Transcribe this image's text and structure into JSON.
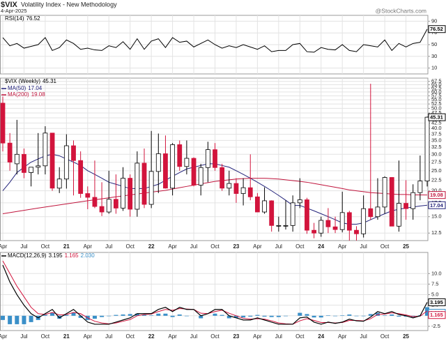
{
  "header": {
    "symbol": "$VIX",
    "name": "Volatility Index - New Methodology",
    "date": "4-Apr-2025",
    "credit": "@StockCharts.com"
  },
  "chart_data": [
    {
      "type": "line",
      "series": [
        {
          "name": "RSI(14)",
          "color": "#000000",
          "values": [
            62,
            48,
            52,
            44,
            47,
            50,
            62,
            40,
            45,
            58,
            52,
            42,
            44,
            41,
            40,
            48,
            45,
            55,
            42,
            60,
            42,
            56,
            60,
            45,
            62,
            54,
            56,
            46,
            52,
            58,
            50,
            44,
            48,
            45,
            50,
            46,
            42,
            48,
            38,
            40,
            40,
            50,
            52,
            38,
            37,
            45,
            42,
            41,
            50,
            40,
            38,
            50,
            48,
            46,
            58,
            40,
            52,
            46,
            52,
            54,
            76.52
          ]
        }
      ],
      "ylim": [
        0,
        100
      ],
      "yticks": [
        10,
        30,
        50,
        70,
        90
      ],
      "grid": true
    },
    {
      "type": "candlestick",
      "name": "$VIX (Weekly)",
      "categories": [
        "Apr",
        null,
        null,
        "Jul",
        null,
        null,
        "Oct",
        null,
        null,
        "21",
        null,
        null,
        "Apr",
        null,
        null,
        "Jul",
        null,
        null,
        "Oct",
        null,
        null,
        "22",
        null,
        null,
        "Apr",
        null,
        null,
        "Jul",
        null,
        null,
        "Oct",
        null,
        null,
        "23",
        null,
        null,
        "Apr",
        null,
        null,
        "Jul",
        null,
        null,
        "Oct",
        null,
        null,
        "24",
        null,
        null,
        "Apr",
        null,
        null,
        "Jul",
        null,
        null,
        "Oct",
        null,
        null,
        "25",
        null,
        null,
        null
      ],
      "open": [
        53,
        34,
        27,
        30,
        24.5,
        26,
        26.4,
        38,
        20.6,
        22.8,
        33,
        28,
        19.4,
        18.6,
        16.8,
        15.8,
        18.2,
        16.5,
        23,
        16.3,
        27.2,
        17.2,
        24.8,
        30.2,
        20.6,
        33.4,
        26.2,
        28.7,
        21.3,
        25.9,
        31.6,
        25.9,
        20.6,
        21.7,
        19.4,
        20.7,
        18.7,
        15.8,
        17.9,
        13.6,
        13.6,
        13.6,
        17.5,
        18.1,
        12.9,
        12.5,
        14.4,
        13.4,
        13,
        15.7,
        12.9,
        12.4,
        16.4,
        15,
        16.7,
        23.2,
        13.5,
        17.4,
        16.4,
        19.6,
        22.3
      ],
      "high": [
        57,
        38,
        44,
        32,
        26,
        38,
        41,
        38,
        26,
        37.5,
        35,
        31,
        21,
        28,
        22,
        25,
        24,
        26,
        24,
        31,
        32,
        38.9,
        37.8,
        37,
        34,
        35,
        35,
        29,
        27,
        34.5,
        34,
        27,
        25,
        23,
        23,
        30,
        19.5,
        20.8,
        18,
        15,
        18,
        19,
        23,
        18.5,
        14,
        15,
        16.5,
        15,
        19.8,
        16,
        13.5,
        19,
        65.7,
        23,
        23.5,
        23.3,
        28,
        22.5,
        21.5,
        29.6,
        45.6
      ],
      "low": [
        31,
        25,
        24,
        23,
        21,
        24,
        24,
        20,
        19.5,
        20.5,
        19,
        18.5,
        16.3,
        16.5,
        15.1,
        15.5,
        15.5,
        16,
        15,
        15,
        16.5,
        16.5,
        19.5,
        20.5,
        19,
        25,
        24,
        21,
        19,
        22,
        25,
        20,
        19,
        17.5,
        17,
        18,
        15.8,
        15.5,
        12.7,
        12.7,
        13,
        12.7,
        16.5,
        12.4,
        11.8,
        12,
        12.5,
        12.5,
        12.6,
        11.5,
        11.5,
        11.9,
        14.5,
        14.5,
        15.5,
        14,
        12.7,
        14.5,
        14.5,
        18,
        21
      ],
      "close": [
        34,
        27.5,
        30,
        24.5,
        26,
        26.4,
        38,
        20.6,
        22.8,
        33,
        28,
        19.4,
        18.6,
        16.8,
        15.8,
        18.2,
        16.5,
        23,
        16.3,
        27.2,
        17.2,
        24.8,
        30.2,
        20.6,
        33.4,
        26.2,
        28.7,
        21.3,
        25.9,
        31.6,
        25.9,
        20.6,
        21.7,
        19.4,
        20.7,
        18.7,
        15.8,
        17.9,
        13.6,
        13.6,
        13.6,
        17.5,
        18.1,
        12.9,
        12.5,
        14.4,
        13.4,
        13,
        15.7,
        12.9,
        12.4,
        16.4,
        15,
        16.7,
        23.2,
        13.5,
        17.4,
        16.4,
        19.6,
        22.3,
        45.31
      ],
      "up_color": "#000000",
      "down_color": "#d2143c",
      "overlays": [
        {
          "name": "MA(50)",
          "color": "#22227a",
          "values": [
            20,
            22,
            24.5,
            26,
            27.5,
            28.5,
            29.5,
            30,
            29.5,
            28.5,
            27.5,
            26.5,
            25,
            24,
            23,
            22,
            21.5,
            21,
            20.5,
            20.5,
            20.5,
            21,
            21.5,
            22.5,
            23.5,
            24.5,
            25.5,
            26,
            26.5,
            27,
            27,
            26.5,
            26,
            25,
            24,
            23,
            22,
            21,
            20,
            19,
            18,
            17,
            17,
            16.5,
            16,
            15.5,
            15,
            14.5,
            14,
            13.8,
            13.8,
            14,
            14.5,
            15,
            15.5,
            16,
            16.3,
            16.5,
            16.7,
            16.9,
            17.04
          ]
        },
        {
          "name": "MA(200)",
          "color": "#c0143c",
          "values": [
            15.5,
            15.7,
            15.9,
            16.1,
            16.3,
            16.5,
            16.7,
            16.9,
            17.1,
            17.3,
            17.5,
            17.7,
            17.9,
            18.1,
            18.3,
            18.5,
            18.7,
            18.9,
            19.1,
            19.3,
            19.5,
            19.7,
            19.9,
            20.1,
            20.4,
            20.7,
            21,
            21.3,
            21.6,
            21.9,
            22.2,
            22.4,
            22.6,
            22.8,
            22.9,
            23,
            23,
            23,
            22.9,
            22.8,
            22.6,
            22.4,
            22.2,
            22,
            21.7,
            21.4,
            21.1,
            20.8,
            20.5,
            20.2,
            20,
            19.8,
            19.6,
            19.5,
            19.4,
            19.3,
            19.2,
            19.2,
            19.1,
            19.1,
            19.08
          ]
        }
      ],
      "log_scale": true,
      "ylim": [
        11.5,
        70
      ],
      "yticks": [
        12.5,
        {
          "value": 15,
          "label": "15.0"
        },
        17.5,
        {
          "value": 20,
          "label": "20.0"
        },
        22.5,
        {
          "value": 25,
          "label": "25.0"
        },
        27.5,
        {
          "value": 30,
          "label": "30.0"
        },
        32.5,
        {
          "value": 35,
          "label": "35.0"
        },
        37.5,
        {
          "value": 40,
          "label": "40.0"
        },
        42.5,
        {
          "value": 45,
          "label": "45.0"
        },
        47.5,
        {
          "value": 50,
          "label": "50.0"
        },
        52.5,
        {
          "value": 55,
          "label": "55.0"
        },
        57.5,
        {
          "value": 60,
          "label": "60.0"
        },
        62.5,
        {
          "value": 65,
          "label": "65.0"
        },
        67.5
      ],
      "grid": true
    },
    {
      "type": "macd",
      "name": "MACD(12,26,9)",
      "categories": [
        "Apr",
        null,
        null,
        "Jul",
        null,
        null,
        "Oct",
        null,
        null,
        "21",
        null,
        null,
        "Apr",
        null,
        null,
        "Jul",
        null,
        null,
        "Oct",
        null,
        null,
        "22",
        null,
        null,
        "Apr",
        null,
        null,
        "Jul",
        null,
        null,
        "Oct",
        null,
        null,
        "23",
        null,
        null,
        "Apr",
        null,
        null,
        "Jul",
        null,
        null,
        "Oct",
        null,
        null,
        "24",
        null,
        null,
        "Apr",
        null,
        null,
        "Jul",
        null,
        null,
        "Oct",
        null,
        null,
        "25",
        null,
        null,
        null
      ],
      "macd": {
        "color": "#000000",
        "values": [
          12,
          8,
          5,
          2.5,
          0.5,
          -0.5,
          0.5,
          1.5,
          -0.5,
          0.5,
          1.5,
          0,
          -1.5,
          -2,
          -2,
          -2,
          -1.5,
          -1,
          -0.5,
          0.5,
          0.5,
          0.5,
          1.5,
          2,
          1,
          2,
          1.5,
          1.5,
          0,
          0.5,
          1.5,
          1.5,
          0,
          -0.5,
          -1,
          -1,
          -0.5,
          -1,
          -1.5,
          -2,
          -2,
          -2,
          -0.5,
          -0.3,
          -1.5,
          -2,
          -1.5,
          -1.8,
          -1.5,
          -0.8,
          -1.2,
          -1.3,
          -0.3,
          1,
          0.5,
          1,
          0.3,
          0,
          -0.5,
          0,
          3.195
        ]
      },
      "signal": {
        "color": "#d2143c",
        "values": [
          13,
          10,
          7,
          4.5,
          2,
          0.5,
          0.3,
          0.8,
          0.2,
          0.3,
          0.8,
          0.5,
          -0.5,
          -1.3,
          -1.7,
          -1.9,
          -1.7,
          -1.3,
          -0.9,
          0,
          0.3,
          0.4,
          1,
          1.5,
          1.3,
          1.7,
          1.6,
          1.5,
          0.6,
          0.5,
          1,
          1.3,
          0.6,
          0,
          -0.6,
          -0.8,
          -0.7,
          -0.8,
          -1.2,
          -1.7,
          -1.9,
          -2,
          -1.2,
          -0.7,
          -1.1,
          -1.6,
          -1.6,
          -1.7,
          -1.6,
          -1.1,
          -1.1,
          -1.2,
          -0.7,
          0.3,
          0.4,
          0.7,
          0.5,
          0.2,
          -0.2,
          -0.1,
          1.165
        ]
      },
      "histogram": {
        "color": "#3a8fc8",
        "values": [
          -1,
          -2,
          -2,
          -2,
          -1.5,
          -1,
          0.2,
          0.7,
          -0.7,
          0.2,
          0.7,
          -0.5,
          -1,
          -0.7,
          -0.3,
          -0.1,
          0.2,
          0.3,
          0.4,
          0.5,
          0.2,
          0.1,
          0.5,
          0.5,
          -0.3,
          0.3,
          -0.1,
          0,
          -0.6,
          0,
          0.5,
          0.2,
          -0.6,
          -0.5,
          -0.4,
          -0.2,
          0.2,
          -0.2,
          -0.3,
          -0.3,
          -0.1,
          0,
          0.7,
          0.4,
          -0.4,
          -0.4,
          0.1,
          -0.1,
          0.1,
          0.3,
          -0.1,
          -0.1,
          0.4,
          0.7,
          0.1,
          0.3,
          -0.2,
          -0.2,
          -0.3,
          0.1,
          2.03
        ],
        "value_labels": [
          null,
          null,
          null,
          null,
          null,
          null,
          null,
          null,
          null,
          null,
          null,
          null,
          null,
          null,
          null,
          null,
          null,
          null,
          null,
          null,
          null,
          null,
          null,
          null,
          null,
          null,
          null,
          null,
          null,
          null,
          null,
          null,
          null,
          null,
          null,
          null,
          null,
          null,
          null,
          null,
          null,
          null,
          null,
          null,
          null,
          null,
          null,
          null,
          null,
          null,
          null,
          null,
          null,
          null,
          null,
          null,
          null,
          null,
          null,
          null,
          "2.030"
        ]
      },
      "ylim": [
        -3.5,
        15
      ],
      "yticks": [
        {
          "value": 10,
          "label": "10.0"
        },
        7.5,
        {
          "value": 5,
          "label": "5.0"
        },
        2.5,
        {
          "value": 0,
          "label": "0.0"
        },
        -2.5
      ],
      "grid": true
    }
  ]
}
